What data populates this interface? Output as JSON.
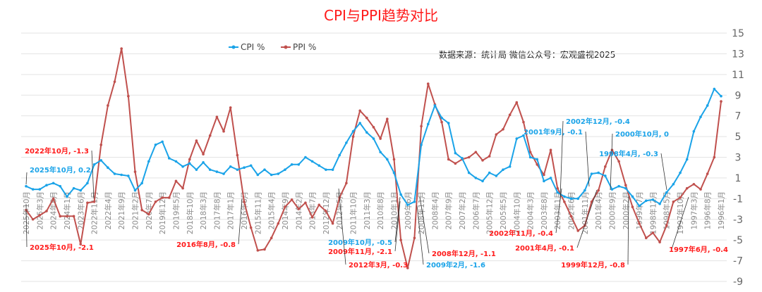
{
  "chart_data": {
    "type": "line",
    "title": "CPI与PPI趋势对比",
    "source_note": "数据来源：统计局  微信公众号：宏观盛视2025",
    "legend_position": "top-center",
    "grid": true,
    "ylim": [
      -9,
      15
    ],
    "yticks": [
      15,
      13,
      11,
      9,
      7,
      5,
      3,
      1,
      -1,
      -3,
      -5,
      -7,
      -9
    ],
    "x_order": "reverse-chronological",
    "tick_labels": [
      "2025年10月",
      "2025年3月",
      "2024年8月",
      "2024年1月",
      "2023年6月",
      "2022年11月",
      "2022年4月",
      "2021年9月",
      "2021年2月",
      "2020年7月",
      "2019年12月",
      "2019年5月",
      "2018年10月",
      "2018年3月",
      "2017年8月",
      "2017年1月",
      "2016年6月",
      "2015年11月",
      "2015年4月",
      "2014年9月",
      "2014年2月",
      "2013年7月",
      "2012年12月",
      "2012年5月",
      "2011年10月",
      "2011年3月",
      "2010年8月",
      "2010年1月",
      "2009年6月",
      "2008年11月",
      "2008年4月",
      "2007年9月",
      "2007年2月",
      "2006年7月",
      "2005年12月",
      "2005年5月",
      "2004年10月",
      "2004年3月",
      "2003年8月",
      "2003年1月",
      "2002年6月",
      "2001年11月",
      "2001年4月",
      "2000年9月",
      "2000年2月",
      "1999年7月",
      "1998年12月",
      "1998年5月",
      "1997年10月",
      "1997年3月",
      "1996年8月",
      "1996年1月"
    ],
    "series": [
      {
        "name": "CPI %",
        "color": "#1aa3e8",
        "values": [
          0.2,
          -0.1,
          -0.1,
          0.3,
          0.5,
          0.2,
          -0.8,
          0,
          -0.2,
          0.5,
          2.3,
          2.7,
          2.0,
          1.4,
          1.3,
          1.2,
          -0.2,
          0.5,
          2.6,
          4.2,
          4.5,
          2.9,
          2.6,
          2.1,
          2.4,
          1.8,
          2.5,
          1.8,
          1.6,
          1.4,
          2.1,
          1.8,
          2.0,
          2.2,
          1.3,
          1.8,
          1.3,
          1.4,
          1.8,
          2.3,
          2.3,
          3.0,
          2.6,
          2.2,
          1.8,
          1.8,
          3.2,
          4.4,
          5.5,
          6.3,
          5.4,
          4.8,
          3.5,
          2.8,
          1.5,
          -0.6,
          -1.6,
          -1.3,
          4.2,
          6.2,
          8.0,
          6.8,
          6.3,
          3.4,
          2.9,
          1.5,
          1.0,
          0.7,
          1.5,
          1.2,
          1.8,
          2.1,
          4.8,
          5.1,
          3.0,
          2.8,
          0.7,
          1.0,
          -0.4,
          -0.8,
          -1.0,
          -1.0,
          -0.2,
          1.4,
          1.5,
          1.2,
          -0.1,
          0.2,
          0.0,
          -0.8,
          -1.7,
          -1.2,
          -1.1,
          -1.5,
          -0.4,
          0.4,
          1.5,
          2.8,
          5.5,
          6.9,
          8.0,
          9.6,
          8.9
        ]
      },
      {
        "name": "PPI %",
        "color": "#c0504d",
        "values": [
          -2.1,
          -3.0,
          -2.6,
          -2.2,
          -1.0,
          -2.7,
          -2.7,
          -2.7,
          -5.4,
          -1.4,
          -1.3,
          4.2,
          8.0,
          10.3,
          13.5,
          8.9,
          1.6,
          -2.1,
          -2.5,
          -1.3,
          -0.9,
          -0.9,
          0.7,
          0.0,
          2.8,
          4.6,
          3.3,
          5.1,
          6.9,
          5.5,
          7.8,
          3.2,
          -1.3,
          -3.8,
          -6.0,
          -5.9,
          -4.8,
          -3.4,
          -1.8,
          -1.1,
          -2.0,
          -1.4,
          -2.8,
          -1.6,
          -2.2,
          -3.4,
          -0.9,
          0.5,
          5.0,
          7.5,
          6.8,
          5.9,
          4.8,
          6.7,
          2.8,
          -5.0,
          -7.7,
          -4.8,
          6.0,
          10.1,
          8.1,
          6.4,
          2.8,
          2.4,
          2.8,
          3.0,
          3.5,
          2.7,
          3.1,
          5.2,
          5.7,
          7.1,
          8.3,
          6.4,
          3.5,
          2.3,
          1.3,
          3.7,
          0.0,
          -1.3,
          -2.7,
          -4.1,
          -3.6,
          -1.3,
          -0.2,
          2.1,
          3.7,
          2.6,
          0.3,
          -1.8,
          -3.4,
          -4.8,
          -4.3,
          -5.2,
          -3.6,
          -1.3,
          -0.9,
          0.0,
          0.4,
          -0.1,
          1.4,
          3.0,
          8.4
        ]
      }
    ],
    "annotations": [
      {
        "text": "2025年10月, 0.2",
        "series": "CPI %",
        "color": "#1aa3e8"
      },
      {
        "text": "2022年10月, -1.3",
        "series": "PPI %",
        "color": "#ff1a1a"
      },
      {
        "text": "2025年10月, -2.1",
        "series": "PPI %",
        "color": "#ff1a1a"
      },
      {
        "text": "2016年8月, -0.8",
        "series": "PPI %",
        "color": "#ff1a1a"
      },
      {
        "text": "2009年10月, -0.5",
        "series": "CPI %",
        "color": "#1aa3e8"
      },
      {
        "text": "2009年11月, -2.1",
        "series": "PPI %",
        "color": "#ff1a1a"
      },
      {
        "text": "2012年3月, -0.3",
        "series": "PPI %",
        "color": "#ff1a1a"
      },
      {
        "text": "2008年12月, -1.1",
        "series": "PPI %",
        "color": "#ff1a1a"
      },
      {
        "text": "2009年2月, -1.6",
        "series": "CPI %",
        "color": "#1aa3e8"
      },
      {
        "text": "2002年11月, -0.4",
        "series": "PPI %",
        "color": "#ff1a1a"
      },
      {
        "text": "2001年4月, -0.1",
        "series": "PPI %",
        "color": "#ff1a1a"
      },
      {
        "text": "2001年9月, -0.1",
        "series": "CPI %",
        "color": "#1aa3e8"
      },
      {
        "text": "2002年12月, -0.4",
        "series": "CPI %",
        "color": "#1aa3e8"
      },
      {
        "text": "2000年10月, 0",
        "series": "CPI %",
        "color": "#1aa3e8"
      },
      {
        "text": "1998年4月, -0.3",
        "series": "CPI %",
        "color": "#1aa3e8"
      },
      {
        "text": "1999年12月, -0.8",
        "series": "PPI %",
        "color": "#ff1a1a"
      },
      {
        "text": "1997年6月, -0.4",
        "series": "PPI %",
        "color": "#ff1a1a"
      }
    ]
  }
}
